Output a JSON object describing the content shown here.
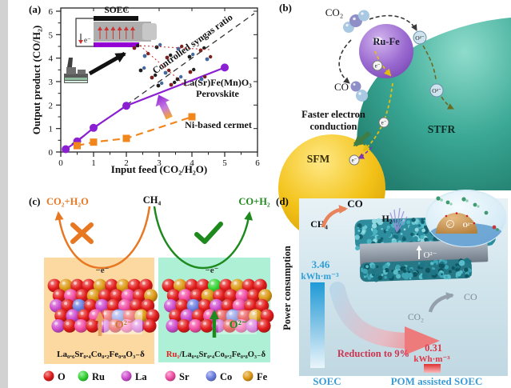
{
  "figure": {
    "panel_a": {
      "tag": "(a)",
      "ylabel": "Output product (CO/H₂)",
      "xlabel": "Input feed (CO₂/H₂O)",
      "x_ticks": [
        "0",
        "1",
        "2",
        "3",
        "4",
        "5",
        "6"
      ],
      "y_ticks": [
        "0",
        "1",
        "2",
        "3",
        "4",
        "5",
        "6"
      ],
      "ref_line_label": "Controlled syngas ratio",
      "inset": {
        "title": "SOEC",
        "electron": "e⁻"
      },
      "series_labels": {
        "perovskite_line1": "La(Sr)Fe(Mn)O₃",
        "perovskite_line2": "Perovskite",
        "cermet": "Ni-based cermet"
      },
      "colors": {
        "perovskite": "#8a1fd4",
        "cermet_line": "#f0861c",
        "cermet_text": "#b05a1a",
        "ref_line": "#333333"
      }
    },
    "panel_b": {
      "tag": "(b)",
      "labels": {
        "co2": "CO₂",
        "co": "CO",
        "rufe": "Ru-Fe",
        "oxygen_ion": "O²⁻",
        "electron": "e⁻",
        "conduction_line1": "Faster electron",
        "conduction_line2": "conduction",
        "sfm": "SFM",
        "stfr": "STFR"
      },
      "colors": {
        "stfr": "#2f9c8a",
        "sfm": "#eebb10",
        "rufe": "#9263cc"
      }
    },
    "panel_c": {
      "tag": "(c)",
      "left_product": "CO₂+H₂O",
      "feed": "CH₄",
      "right_product": "CO+H₂",
      "minus_e": "−e⁻",
      "oxygen_ion": "O²⁻",
      "formula_left": "La₀.₆Sr₀.₄Co₀.₂Fe₀.₈O₃₋δ",
      "formula_right_prefix": "Ru₁",
      "formula_right_rest": "/La₀.₆Sr₀.₄Co₀.₂Fe₀.₈O₃₋δ",
      "legend": [
        {
          "label": "O",
          "color": "#e21b1b"
        },
        {
          "label": "Ru",
          "color": "#35d435"
        },
        {
          "label": "La",
          "color": "#cf4ecf"
        },
        {
          "label": "Sr",
          "color": "#f24fa5"
        },
        {
          "label": "Co",
          "color": "#6d7fe0"
        },
        {
          "label": "Fe",
          "color": "#dd9a16"
        }
      ],
      "colors": {
        "reject": "#e87722",
        "accept": "#1e8a1e",
        "left_bg": "#fbd9a1",
        "right_bg": "#aef0d5"
      }
    },
    "panel_d": {
      "tag": "(d)",
      "ylabel": "Power consumption",
      "labels": {
        "ch4": "CH₄",
        "co_top": "CO",
        "h2": "H₂",
        "slab_ion": "O²⁻",
        "co2": "CO₂",
        "co_out": "CO",
        "bubble_e": "e⁻",
        "bubble_o": "O²⁻"
      },
      "soec_value": "3.46",
      "soec_unit": "kWh·m⁻³",
      "pom_value": "0.31",
      "pom_unit": "kWh·m⁻³",
      "reduction": "Reduction to 9%",
      "x_left": "SOEC",
      "x_right": "POM assisted SOEC",
      "colors": {
        "value_blue": "#2f9fd8",
        "reduction_red": "#cc3350",
        "bar_blue": "#1f9ad6",
        "bar_red": "#e23030",
        "axis_blue": "#3b9bd5"
      }
    }
  },
  "chart_data": {
    "type": "line",
    "xlabel": "Input feed (CO₂/H₂O)",
    "ylabel": "Output product (CO/H₂)",
    "xlim": [
      0,
      6
    ],
    "ylim": [
      0,
      6
    ],
    "grid": false,
    "series": [
      {
        "name": "La(Sr)Fe(Mn)O₃ Perovskite",
        "color": "#8a1fd4",
        "marker": "circle",
        "x": [
          0.15,
          0.5,
          1,
          2,
          5
        ],
        "y": [
          0.12,
          0.45,
          1.03,
          1.97,
          3.6
        ]
      },
      {
        "name": "Ni-based cermet",
        "color": "#f0861c",
        "marker": "square",
        "x": [
          0.5,
          1,
          2,
          4
        ],
        "y": [
          0.27,
          0.42,
          0.58,
          1.5
        ]
      }
    ],
    "reference_line": {
      "label": "Controlled syngas ratio",
      "from": [
        0.1,
        0.1
      ],
      "to": [
        5.9,
        5.9
      ],
      "style": "dashed"
    }
  }
}
